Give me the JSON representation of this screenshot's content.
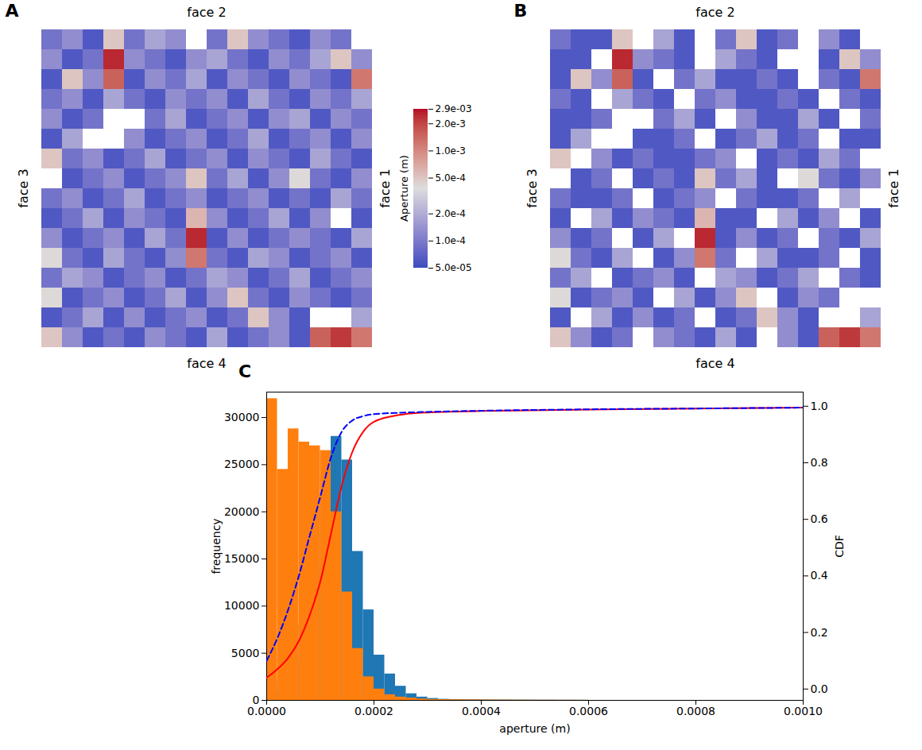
{
  "chart_data": [
    {
      "type": "heatmap",
      "panel": "A",
      "side_labels": {
        "top": "face 2",
        "left": "face 3",
        "right": "face 1",
        "bottom": "face 4"
      },
      "colorbar": {
        "label": "Aperture (m)",
        "log": true,
        "range": [
          5e-05,
          0.0029
        ],
        "ticks": [
          {
            "value": 0.0029,
            "label": "2.9e-03"
          },
          {
            "value": 0.002,
            "label": "2.0e-3"
          },
          {
            "value": 0.001,
            "label": "1.0e-3"
          },
          {
            "value": 0.0005,
            "label": "5.0e-4"
          },
          {
            "value": 0.0002,
            "label": "2.0e-4"
          },
          {
            "value": 0.0001,
            "label": "1.0e-4"
          },
          {
            "value": 5e-05,
            "label": "5.0e-05"
          }
        ]
      },
      "values": [
        [
          9e-05,
          0.00013,
          6e-05,
          0.0005,
          9e-05,
          0.00018,
          0.00013,
          null,
          9e-05,
          0.0005,
          0.00013,
          9e-05,
          6e-05,
          0.00013,
          9e-05,
          null
        ],
        [
          0.00013,
          6e-05,
          9e-05,
          0.0025,
          0.00013,
          9e-05,
          6e-05,
          0.00013,
          0.00018,
          9e-05,
          6e-05,
          0.00013,
          9e-05,
          0.00018,
          0.0005,
          0.00013
        ],
        [
          6e-05,
          0.0005,
          0.00013,
          0.0015,
          6e-05,
          0.00013,
          9e-05,
          0.00018,
          6e-05,
          0.00013,
          9e-05,
          6e-05,
          0.00013,
          9e-05,
          6e-05,
          0.0012
        ],
        [
          9e-05,
          0.00013,
          6e-05,
          0.00018,
          9e-05,
          6e-05,
          0.00013,
          9e-05,
          0.00013,
          6e-05,
          0.00018,
          9e-05,
          6e-05,
          0.00013,
          9e-05,
          0.00018
        ],
        [
          0.00013,
          6e-05,
          9e-05,
          null,
          null,
          9e-05,
          0.00018,
          6e-05,
          9e-05,
          0.00013,
          6e-05,
          0.00013,
          0.00018,
          6e-05,
          0.00013,
          9e-05
        ],
        [
          6e-05,
          0.00018,
          null,
          null,
          0.00013,
          6e-05,
          9e-05,
          0.00013,
          6e-05,
          9e-05,
          0.00018,
          6e-05,
          9e-05,
          0.00013,
          6e-05,
          0.00013
        ],
        [
          0.0005,
          9e-05,
          0.00013,
          6e-05,
          9e-05,
          0.00018,
          6e-05,
          9e-05,
          0.00013,
          6e-05,
          0.00013,
          9e-05,
          6e-05,
          0.00018,
          9e-05,
          6e-05
        ],
        [
          null,
          6e-05,
          9e-05,
          0.00013,
          6e-05,
          9e-05,
          0.00013,
          0.0005,
          9e-05,
          0.00018,
          6e-05,
          0.00013,
          0.0004,
          9e-05,
          6e-05,
          0.00013
        ],
        [
          9e-05,
          0.00013,
          6e-05,
          9e-05,
          0.00018,
          6e-05,
          9e-05,
          0.00013,
          6e-05,
          9e-05,
          0.00013,
          6e-05,
          9e-05,
          6e-05,
          0.00018,
          9e-05
        ],
        [
          6e-05,
          9e-05,
          0.00018,
          6e-05,
          0.00013,
          9e-05,
          6e-05,
          0.0006,
          0.00013,
          6e-05,
          9e-05,
          0.00018,
          6e-05,
          0.00013,
          null,
          6e-05
        ],
        [
          0.00013,
          6e-05,
          9e-05,
          0.00013,
          6e-05,
          0.00018,
          9e-05,
          0.0025,
          6e-05,
          0.00013,
          6e-05,
          9e-05,
          0.00013,
          9e-05,
          6e-05,
          0.00018
        ],
        [
          0.0004,
          9e-05,
          6e-05,
          0.00018,
          9e-05,
          6e-05,
          0.00013,
          0.0012,
          9e-05,
          6e-05,
          0.00018,
          0.00013,
          6e-05,
          9e-05,
          0.00013,
          6e-05
        ],
        [
          9e-05,
          0.00018,
          0.00013,
          6e-05,
          9e-05,
          0.00013,
          6e-05,
          9e-05,
          0.00018,
          0.00013,
          6e-05,
          9e-05,
          0.00018,
          6e-05,
          9e-05,
          0.00013
        ],
        [
          0.0004,
          6e-05,
          9e-05,
          0.00013,
          6e-05,
          9e-05,
          0.00018,
          6e-05,
          0.00013,
          0.0005,
          9e-05,
          6e-05,
          0.00013,
          9e-05,
          6e-05,
          9e-05
        ],
        [
          6e-05,
          9e-05,
          0.00018,
          6e-05,
          0.00013,
          6e-05,
          9e-05,
          0.00013,
          6e-05,
          9e-05,
          0.0005,
          0.00013,
          6e-05,
          null,
          null,
          0.00018
        ],
        [
          0.0005,
          0.00013,
          6e-05,
          9e-05,
          6e-05,
          0.00013,
          9e-05,
          6e-05,
          0.00018,
          6e-05,
          9e-05,
          0.00013,
          6e-05,
          0.0015,
          0.0022,
          0.0012
        ]
      ]
    },
    {
      "type": "heatmap",
      "panel": "B",
      "side_labels": {
        "top": "face 2",
        "left": "face 3",
        "right": "face 1",
        "bottom": "face 4"
      },
      "values": [
        [
          9e-05,
          6e-05,
          6e-05,
          0.0005,
          null,
          0.00018,
          6e-05,
          null,
          9e-05,
          0.0005,
          6e-05,
          9e-05,
          null,
          0.00013,
          6e-05,
          null
        ],
        [
          6e-05,
          6e-05,
          null,
          0.0025,
          0.00013,
          9e-05,
          6e-05,
          null,
          0.00018,
          9e-05,
          6e-05,
          null,
          null,
          6e-05,
          0.0005,
          0.00013
        ],
        [
          6e-05,
          0.0005,
          0.00013,
          0.0015,
          6e-05,
          null,
          9e-05,
          0.00018,
          6e-05,
          6e-05,
          9e-05,
          6e-05,
          null,
          9e-05,
          6e-05,
          0.0012
        ],
        [
          9e-05,
          6e-05,
          null,
          0.00018,
          9e-05,
          6e-05,
          null,
          9e-05,
          0.00013,
          6e-05,
          6e-05,
          9e-05,
          6e-05,
          null,
          9e-05,
          6e-05
        ],
        [
          6e-05,
          6e-05,
          9e-05,
          null,
          null,
          9e-05,
          0.00018,
          6e-05,
          null,
          0.00013,
          6e-05,
          6e-05,
          0.00018,
          6e-05,
          null,
          9e-05
        ],
        [
          6e-05,
          0.00018,
          null,
          null,
          6e-05,
          6e-05,
          9e-05,
          null,
          6e-05,
          9e-05,
          0.00018,
          6e-05,
          9e-05,
          null,
          6e-05,
          6e-05
        ],
        [
          0.0005,
          null,
          0.00013,
          6e-05,
          9e-05,
          6e-05,
          6e-05,
          9e-05,
          0.00013,
          null,
          6e-05,
          9e-05,
          6e-05,
          0.00018,
          9e-05,
          null
        ],
        [
          null,
          6e-05,
          9e-05,
          null,
          6e-05,
          9e-05,
          6e-05,
          0.0005,
          9e-05,
          0.00018,
          6e-05,
          null,
          0.0004,
          9e-05,
          6e-05,
          0.00013
        ],
        [
          9e-05,
          6e-05,
          6e-05,
          9e-05,
          null,
          6e-05,
          9e-05,
          0.00013,
          null,
          9e-05,
          6e-05,
          6e-05,
          9e-05,
          null,
          0.00018,
          null
        ],
        [
          6e-05,
          null,
          0.00018,
          6e-05,
          0.00013,
          9e-05,
          6e-05,
          0.0006,
          6e-05,
          6e-05,
          null,
          0.00018,
          6e-05,
          0.00013,
          null,
          6e-05
        ],
        [
          0.00013,
          6e-05,
          9e-05,
          null,
          6e-05,
          0.00018,
          null,
          0.0025,
          6e-05,
          0.00013,
          6e-05,
          9e-05,
          null,
          9e-05,
          6e-05,
          0.00018
        ],
        [
          0.0004,
          9e-05,
          6e-05,
          0.00018,
          null,
          6e-05,
          0.00013,
          0.0012,
          9e-05,
          null,
          0.00018,
          6e-05,
          6e-05,
          9e-05,
          null,
          6e-05
        ],
        [
          9e-05,
          0.00018,
          null,
          6e-05,
          9e-05,
          0.00013,
          6e-05,
          null,
          0.00018,
          0.00013,
          6e-05,
          9e-05,
          0.00018,
          null,
          9e-05,
          6e-05
        ],
        [
          0.0004,
          6e-05,
          9e-05,
          0.00013,
          6e-05,
          null,
          0.00018,
          6e-05,
          0.00013,
          0.0005,
          null,
          6e-05,
          0.00013,
          9e-05,
          null,
          null
        ],
        [
          6e-05,
          null,
          0.00018,
          6e-05,
          0.00013,
          6e-05,
          9e-05,
          null,
          6e-05,
          9e-05,
          0.0005,
          0.00013,
          6e-05,
          null,
          null,
          0.00018
        ],
        [
          0.0005,
          0.00013,
          6e-05,
          9e-05,
          null,
          0.00013,
          9e-05,
          6e-05,
          0.00018,
          6e-05,
          null,
          0.00013,
          6e-05,
          0.0015,
          0.0022,
          0.0012
        ]
      ]
    },
    {
      "type": "histogram",
      "panel": "C",
      "xlabel": "aperture (m)",
      "ylabel": "frequency",
      "y2label": "CDF",
      "xlim": [
        0,
        0.001
      ],
      "xticks": [
        {
          "value": 0,
          "label": "0.0000"
        },
        {
          "value": 0.0002,
          "label": "0.0002"
        },
        {
          "value": 0.0004,
          "label": "0.0004"
        },
        {
          "value": 0.0006,
          "label": "0.0006"
        },
        {
          "value": 0.0008,
          "label": "0.0008"
        },
        {
          "value": 0.001,
          "label": "0.0010"
        }
      ],
      "ylim": [
        0,
        32700
      ],
      "yticks": [
        0,
        5000,
        10000,
        15000,
        20000,
        25000,
        30000
      ],
      "y2lim": [
        -0.04,
        1.05
      ],
      "y2ticks": [
        {
          "value": 0,
          "label": "0.0"
        },
        {
          "value": 0.2,
          "label": "0.2"
        },
        {
          "value": 0.4,
          "label": "0.4"
        },
        {
          "value": 0.6,
          "label": "0.6"
        },
        {
          "value": 0.8,
          "label": "0.8"
        },
        {
          "value": 1,
          "label": "1.0"
        }
      ],
      "bins": [
        0,
        2e-05,
        4e-05,
        6e-05,
        8e-05,
        0.0001,
        0.00012,
        0.00014,
        0.00016,
        0.00018,
        0.0002,
        0.00022,
        0.00024,
        0.00026,
        0.00028,
        0.0003,
        0.00032,
        0.00034,
        0.00036,
        0.00038,
        0.0004,
        0.00042,
        0.00044,
        0.00046,
        0.00048,
        0.0005,
        0.00052,
        0.00054,
        0.00056,
        0.00058,
        0.0006
      ],
      "series": [
        {
          "type": "bar",
          "color": "#1f77b4",
          "values": [
            1000,
            2000,
            4000,
            8000,
            14000,
            21000,
            28000,
            25500,
            15800,
            9600,
            4800,
            2800,
            1500,
            700,
            350,
            200,
            120,
            90,
            70,
            60,
            50,
            45,
            40,
            35,
            30,
            25,
            25,
            20,
            20,
            15
          ]
        },
        {
          "type": "bar",
          "color": "#ff7f0e",
          "values": [
            32000,
            24500,
            28800,
            27400,
            27000,
            26500,
            20000,
            11500,
            5500,
            2500,
            1200,
            600,
            350,
            250,
            150,
            100,
            80,
            70,
            60,
            50,
            45,
            40,
            35,
            30,
            30,
            25,
            25,
            20,
            20,
            15
          ]
        },
        {
          "type": "line",
          "color": "#ff0000",
          "line_style": "solid",
          "axis": "y2",
          "x": [
            0,
            2e-05,
            4e-05,
            6e-05,
            8e-05,
            0.0001,
            0.00012,
            0.00014,
            0.00016,
            0.00018,
            0.0002,
            0.00025,
            0.0003,
            0.0004,
            0.0006,
            0.0008,
            0.001
          ],
          "values": [
            0.04,
            0.07,
            0.11,
            0.17,
            0.26,
            0.38,
            0.55,
            0.72,
            0.84,
            0.91,
            0.945,
            0.97,
            0.978,
            0.983,
            0.988,
            0.992,
            0.995
          ]
        },
        {
          "type": "line",
          "color": "#0000ff",
          "line_style": "dashed",
          "axis": "y2",
          "x": [
            0,
            2e-05,
            4e-05,
            6e-05,
            8e-05,
            0.0001,
            0.00012,
            0.00014,
            0.00016,
            0.00018,
            0.0002,
            0.00025,
            0.0003,
            0.0004,
            0.0006,
            0.0008,
            0.001
          ],
          "values": [
            0.1,
            0.18,
            0.28,
            0.4,
            0.54,
            0.68,
            0.82,
            0.91,
            0.95,
            0.965,
            0.972,
            0.977,
            0.98,
            0.984,
            0.989,
            0.992,
            0.995
          ]
        }
      ]
    }
  ]
}
